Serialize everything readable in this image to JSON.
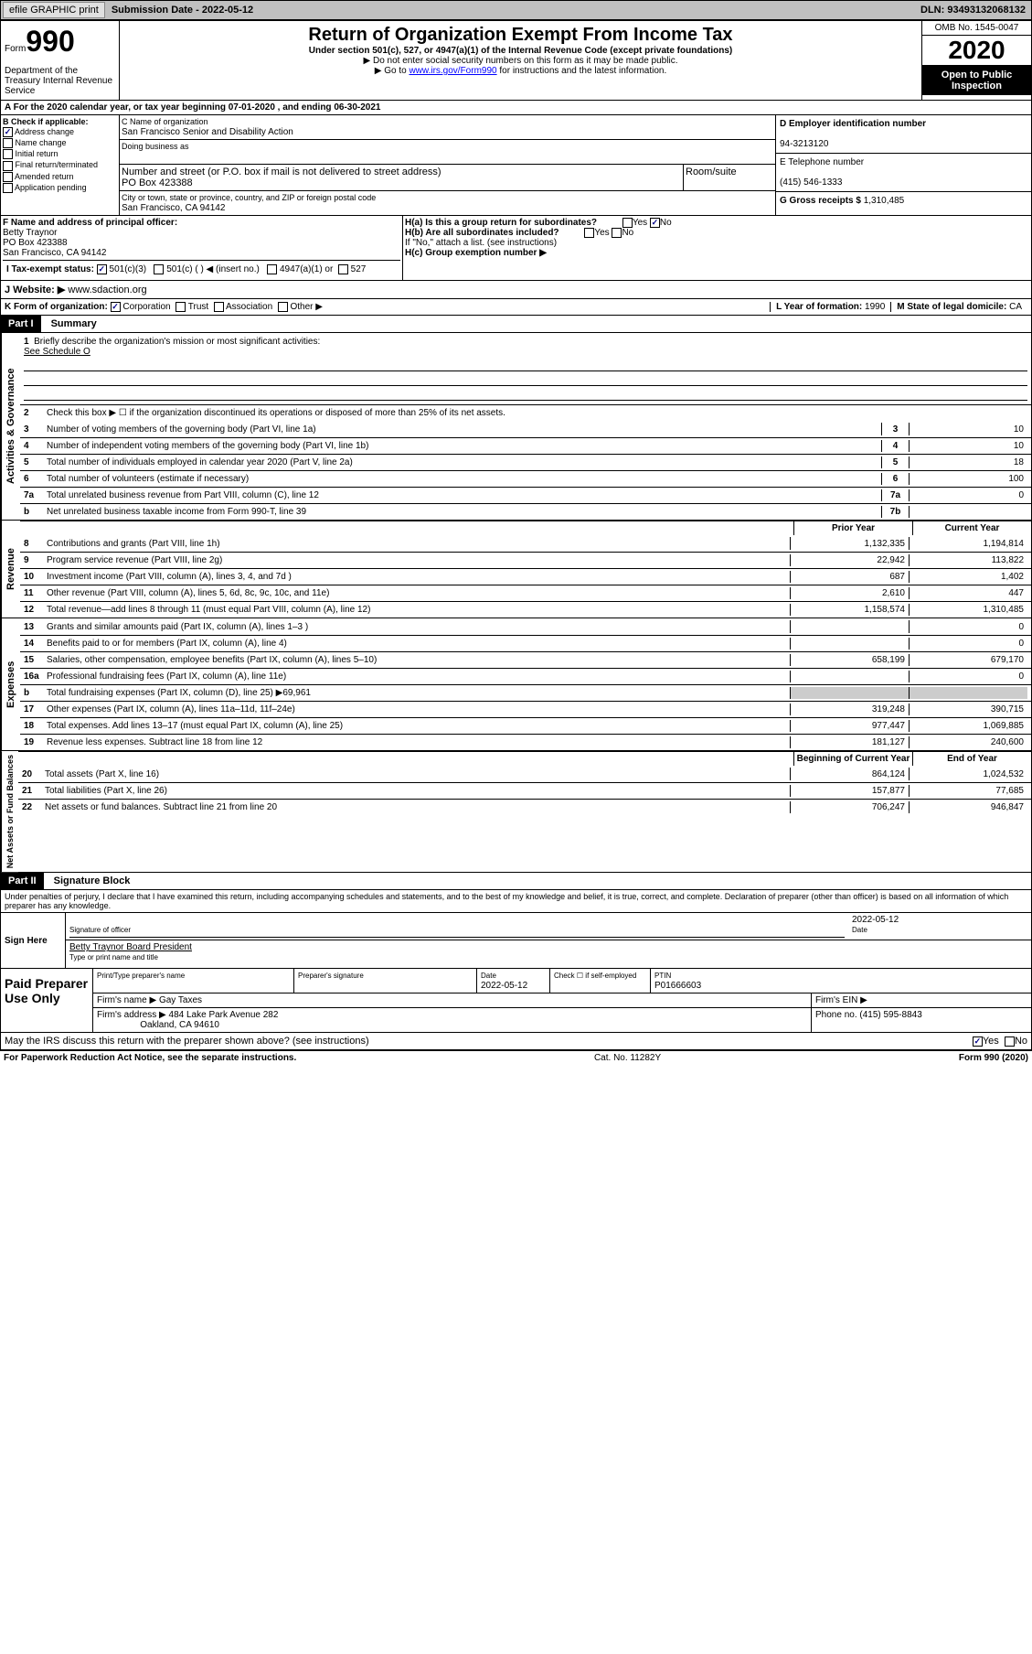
{
  "header": {
    "efile_btn": "efile GRAPHIC print",
    "sub_date_label": "Submission Date - ",
    "sub_date": "2022-05-12",
    "dln_label": "DLN: ",
    "dln": "93493132068132"
  },
  "form_header": {
    "form_label": "Form",
    "form_no": "990",
    "dept": "Department of the Treasury\nInternal Revenue Service",
    "title": "Return of Organization Exempt From Income Tax",
    "subtitle": "Under section 501(c), 527, or 4947(a)(1) of the Internal Revenue Code (except private foundations)",
    "note1": "▶ Do not enter social security numbers on this form as it may be made public.",
    "note2_pre": "▶ Go to ",
    "note2_link": "www.irs.gov/Form990",
    "note2_post": " for instructions and the latest information.",
    "omb": "OMB No. 1545-0047",
    "year": "2020",
    "open": "Open to Public Inspection"
  },
  "row_a": "A For the 2020 calendar year, or tax year beginning 07-01-2020    , and ending 06-30-2021",
  "section_b": {
    "label": "B Check if applicable:",
    "addr_change": "Address change",
    "name_change": "Name change",
    "initial": "Initial return",
    "final": "Final return/terminated",
    "amended": "Amended return",
    "app": "Application pending"
  },
  "section_c": {
    "name_label": "C Name of organization",
    "name": "San Francisco Senior and Disability Action",
    "dba_label": "Doing business as",
    "dba": "",
    "street_label": "Number and street (or P.O. box if mail is not delivered to street address)",
    "street": "PO Box 423388",
    "suite_label": "Room/suite",
    "city_label": "City or town, state or province, country, and ZIP or foreign postal code",
    "city": "San Francisco, CA  94142"
  },
  "section_de": {
    "d_label": "D Employer identification number",
    "d_val": "94-3213120",
    "e_label": "E Telephone number",
    "e_val": "(415) 546-1333",
    "g_label": "G Gross receipts $ ",
    "g_val": "1,310,485"
  },
  "section_f": {
    "label": "F Name and address of principal officer:",
    "name": "Betty Traynor",
    "addr1": "PO Box 423388",
    "addr2": "San Francisco, CA  94142"
  },
  "section_h": {
    "ha_label": "H(a)  Is this a group return for subordinates?",
    "hb_label": "H(b)  Are all subordinates included?",
    "hb_note": "If \"No,\" attach a list. (see instructions)",
    "hc_label": "H(c)  Group exemption number ▶",
    "yes": "Yes",
    "no": "No"
  },
  "row_i": {
    "label": "I  Tax-exempt status:",
    "o1": "501(c)(3)",
    "o2": "501(c) (   ) ◀ (insert no.)",
    "o3": "4947(a)(1) or",
    "o4": "527"
  },
  "row_j": {
    "label": "J  Website: ▶  ",
    "val": "www.sdaction.org"
  },
  "row_k": {
    "label": "K Form of organization:",
    "corp": "Corporation",
    "trust": "Trust",
    "assoc": "Association",
    "other": "Other ▶",
    "l_label": "L Year of formation: ",
    "l_val": "1990",
    "m_label": "M State of legal domicile: ",
    "m_val": "CA"
  },
  "part1": {
    "title": "Part I",
    "subtitle": "Summary",
    "section_labels": {
      "gov": "Activities & Governance",
      "rev": "Revenue",
      "exp": "Expenses",
      "net": "Net Assets or Fund Balances"
    },
    "line1": "Briefly describe the organization's mission or most significant activities:",
    "line1_val": "See Schedule O",
    "line2": "Check this box ▶ ☐  if the organization discontinued its operations or disposed of more than 25% of its net assets.",
    "lines": [
      {
        "n": "3",
        "desc": "Number of voting members of the governing body (Part VI, line 1a)",
        "box": "3",
        "val": "10"
      },
      {
        "n": "4",
        "desc": "Number of independent voting members of the governing body (Part VI, line 1b)",
        "box": "4",
        "val": "10"
      },
      {
        "n": "5",
        "desc": "Total number of individuals employed in calendar year 2020 (Part V, line 2a)",
        "box": "5",
        "val": "18"
      },
      {
        "n": "6",
        "desc": "Total number of volunteers (estimate if necessary)",
        "box": "6",
        "val": "100"
      },
      {
        "n": "7a",
        "desc": "Total unrelated business revenue from Part VIII, column (C), line 12",
        "box": "7a",
        "val": "0"
      },
      {
        "n": "b",
        "desc": "Net unrelated business taxable income from Form 990-T, line 39",
        "box": "7b",
        "val": ""
      }
    ],
    "col_headers": {
      "prior": "Prior Year",
      "current": "Current Year",
      "begin": "Beginning of Current Year",
      "end": "End of Year"
    },
    "revenue": [
      {
        "n": "8",
        "desc": "Contributions and grants (Part VIII, line 1h)",
        "p": "1,132,335",
        "c": "1,194,814"
      },
      {
        "n": "9",
        "desc": "Program service revenue (Part VIII, line 2g)",
        "p": "22,942",
        "c": "113,822"
      },
      {
        "n": "10",
        "desc": "Investment income (Part VIII, column (A), lines 3, 4, and 7d )",
        "p": "687",
        "c": "1,402"
      },
      {
        "n": "11",
        "desc": "Other revenue (Part VIII, column (A), lines 5, 6d, 8c, 9c, 10c, and 11e)",
        "p": "2,610",
        "c": "447"
      },
      {
        "n": "12",
        "desc": "Total revenue—add lines 8 through 11 (must equal Part VIII, column (A), line 12)",
        "p": "1,158,574",
        "c": "1,310,485"
      }
    ],
    "expenses": [
      {
        "n": "13",
        "desc": "Grants and similar amounts paid (Part IX, column (A), lines 1–3 )",
        "p": "",
        "c": "0"
      },
      {
        "n": "14",
        "desc": "Benefits paid to or for members (Part IX, column (A), line 4)",
        "p": "",
        "c": "0"
      },
      {
        "n": "15",
        "desc": "Salaries, other compensation, employee benefits (Part IX, column (A), lines 5–10)",
        "p": "658,199",
        "c": "679,170"
      },
      {
        "n": "16a",
        "desc": "Professional fundraising fees (Part IX, column (A), line 11e)",
        "p": "",
        "c": "0"
      },
      {
        "n": "b",
        "desc": "Total fundraising expenses (Part IX, column (D), line 25) ▶69,961",
        "p": "gray",
        "c": "gray"
      },
      {
        "n": "17",
        "desc": "Other expenses (Part IX, column (A), lines 11a–11d, 11f–24e)",
        "p": "319,248",
        "c": "390,715"
      },
      {
        "n": "18",
        "desc": "Total expenses. Add lines 13–17 (must equal Part IX, column (A), line 25)",
        "p": "977,447",
        "c": "1,069,885"
      },
      {
        "n": "19",
        "desc": "Revenue less expenses. Subtract line 18 from line 12",
        "p": "181,127",
        "c": "240,600"
      }
    ],
    "netassets": [
      {
        "n": "20",
        "desc": "Total assets (Part X, line 16)",
        "p": "864,124",
        "c": "1,024,532"
      },
      {
        "n": "21",
        "desc": "Total liabilities (Part X, line 26)",
        "p": "157,877",
        "c": "77,685"
      },
      {
        "n": "22",
        "desc": "Net assets or fund balances. Subtract line 21 from line 20",
        "p": "706,247",
        "c": "946,847"
      }
    ]
  },
  "part2": {
    "title": "Part II",
    "subtitle": "Signature Block",
    "declaration": "Under penalties of perjury, I declare that I have examined this return, including accompanying schedules and statements, and to the best of my knowledge and belief, it is true, correct, and complete. Declaration of preparer (other than officer) is based on all information of which preparer has any knowledge.",
    "sign_here": "Sign Here",
    "sig_officer": "Signature of officer",
    "sig_date": "2022-05-12",
    "sig_date_label": "Date",
    "officer_name": "Betty Traynor  Board President",
    "type_label": "Type or print name and title",
    "paid_prep": "Paid Preparer Use Only",
    "prep_name_label": "Print/Type preparer's name",
    "prep_name": "",
    "prep_sig_label": "Preparer's signature",
    "prep_date_label": "Date",
    "prep_date": "2022-05-12",
    "check_label": "Check ☐ if self-employed",
    "ptin_label": "PTIN",
    "ptin": "P01666603",
    "firm_name_label": "Firm's name    ▶ ",
    "firm_name": "Gay Taxes",
    "firm_ein_label": "Firm's EIN ▶",
    "firm_addr_label": "Firm's address ▶ ",
    "firm_addr1": "484 Lake Park Avenue 282",
    "firm_addr2": "Oakland, CA  94610",
    "phone_label": "Phone no. ",
    "phone": "(415) 595-8843",
    "discuss": "May the IRS discuss this return with the preparer shown above? (see instructions)",
    "footer_left": "For Paperwork Reduction Act Notice, see the separate instructions.",
    "footer_mid": "Cat. No. 11282Y",
    "footer_right": "Form 990 (2020)"
  }
}
